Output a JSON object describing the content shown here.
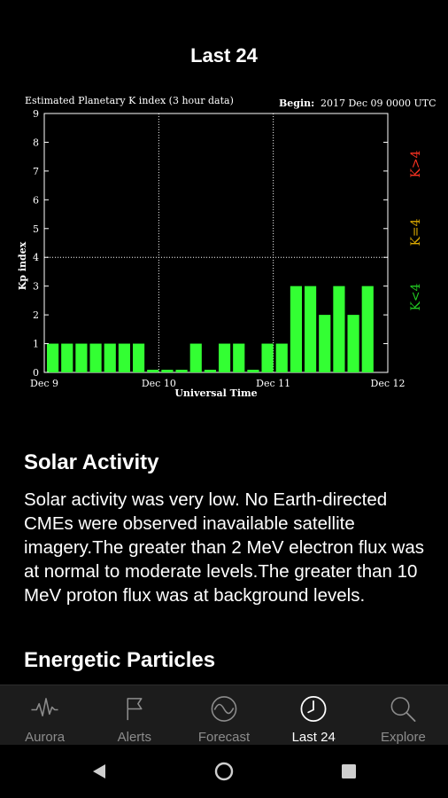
{
  "header": {
    "title": "Last 24"
  },
  "chart_data": {
    "type": "bar",
    "title": "Estimated Planetary K index (3 hour data)",
    "begin_label": "Begin:",
    "begin_value": "2017 Dec 09 0000 UTC",
    "ylabel": "Kp index",
    "xlabel": "Universal Time",
    "ylim": [
      0,
      9
    ],
    "yticks": [
      "0",
      "1",
      "2",
      "3",
      "4",
      "5",
      "6",
      "7",
      "8",
      "9"
    ],
    "xticks": [
      "Dec 9",
      "Dec 10",
      "Dec 11",
      "Dec 12"
    ],
    "values": [
      1,
      1,
      1,
      1,
      1,
      1,
      1,
      0,
      0,
      0,
      1,
      0,
      1,
      1,
      0,
      1,
      1,
      3,
      3,
      2,
      3,
      2,
      3
    ],
    "bar_color": "#33ff33",
    "legend": [
      "K<4",
      "K=4",
      "K>4"
    ],
    "legend_colors": [
      "#22cc22",
      "#ddaa00",
      "#ff3322"
    ]
  },
  "sections": [
    {
      "title": "Solar Activity",
      "body": "Solar activity was very low. No Earth-directed CMEs were observed inavailable satellite imagery.The greater than 2 MeV electron flux was at normal to moderate levels.The greater than 10 MeV proton flux was at background levels."
    },
    {
      "title": "Energetic Particles"
    }
  ],
  "tabs": [
    {
      "label": "Aurora",
      "icon": "aurora-icon"
    },
    {
      "label": "Alerts",
      "icon": "flag-icon"
    },
    {
      "label": "Forecast",
      "icon": "forecast-icon"
    },
    {
      "label": "Last 24",
      "icon": "clock-icon",
      "active": true
    },
    {
      "label": "Explore",
      "icon": "search-icon"
    }
  ]
}
